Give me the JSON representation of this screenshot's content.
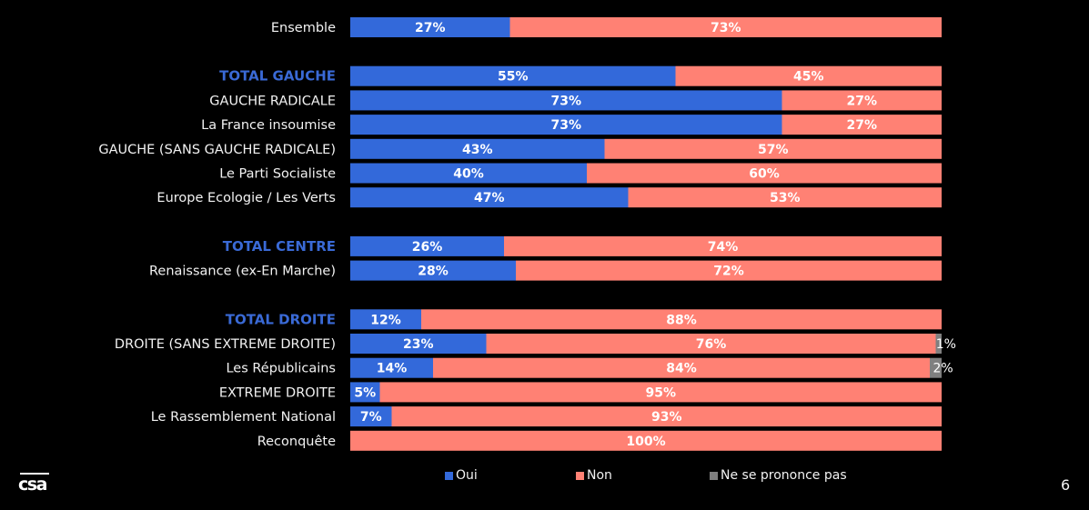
{
  "chart_data": {
    "type": "bar",
    "orientation": "horizontal-stacked-100",
    "title": "",
    "xlabel": "",
    "ylabel": "",
    "xlim": [
      0,
      100
    ],
    "grid": false,
    "legend_position": "bottom",
    "series": [
      {
        "name": "Oui",
        "color": "#3369da"
      },
      {
        "name": "Non",
        "color": "#ff8174"
      },
      {
        "name": "Ne se prononce pas",
        "color": "#7f7f7f"
      }
    ],
    "rows": [
      {
        "label": "Ensemble",
        "total": false,
        "group": 0,
        "values": [
          27,
          73,
          0
        ],
        "labels": [
          "27%",
          "73%",
          ""
        ]
      },
      {
        "label": "TOTAL GAUCHE",
        "total": true,
        "group": 1,
        "values": [
          55,
          45,
          0
        ],
        "labels": [
          "55%",
          "45%",
          ""
        ]
      },
      {
        "label": "GAUCHE RADICALE",
        "total": false,
        "group": 1,
        "values": [
          73,
          27,
          0
        ],
        "labels": [
          "73%",
          "27%",
          ""
        ]
      },
      {
        "label": "La France insoumise",
        "total": false,
        "group": 1,
        "values": [
          73,
          27,
          0
        ],
        "labels": [
          "73%",
          "27%",
          ""
        ]
      },
      {
        "label": "GAUCHE (SANS GAUCHE RADICALE)",
        "total": false,
        "group": 1,
        "values": [
          43,
          57,
          0
        ],
        "labels": [
          "43%",
          "57%",
          ""
        ]
      },
      {
        "label": "Le Parti Socialiste",
        "total": false,
        "group": 1,
        "values": [
          40,
          60,
          0
        ],
        "labels": [
          "40%",
          "60%",
          ""
        ]
      },
      {
        "label": "Europe Ecologie / Les Verts",
        "total": false,
        "group": 1,
        "values": [
          47,
          53,
          0
        ],
        "labels": [
          "47%",
          "53%",
          ""
        ]
      },
      {
        "label": "TOTAL CENTRE",
        "total": true,
        "group": 2,
        "values": [
          26,
          74,
          0
        ],
        "labels": [
          "26%",
          "74%",
          ""
        ]
      },
      {
        "label": "Renaissance (ex-En Marche)",
        "total": false,
        "group": 2,
        "values": [
          28,
          72,
          0
        ],
        "labels": [
          "28%",
          "72%",
          ""
        ]
      },
      {
        "label": "TOTAL DROITE",
        "total": true,
        "group": 3,
        "values": [
          12,
          88,
          0
        ],
        "labels": [
          "12%",
          "88%",
          ""
        ]
      },
      {
        "label": "DROITE (SANS EXTREME DROITE)",
        "total": false,
        "group": 3,
        "values": [
          23,
          76,
          1
        ],
        "labels": [
          "23%",
          "76%",
          "1%"
        ]
      },
      {
        "label": "Les Républicains",
        "total": false,
        "group": 3,
        "values": [
          14,
          84,
          2
        ],
        "labels": [
          "14%",
          "84%",
          "2%"
        ]
      },
      {
        "label": "EXTREME DROITE",
        "total": false,
        "group": 3,
        "values": [
          5,
          95,
          0
        ],
        "labels": [
          "5%",
          "95%",
          ""
        ]
      },
      {
        "label": "Le Rassemblement National",
        "total": false,
        "group": 3,
        "values": [
          7,
          93,
          0
        ],
        "labels": [
          "7%",
          "93%",
          ""
        ]
      },
      {
        "label": "Reconquête",
        "total": false,
        "group": 3,
        "values": [
          0,
          100,
          0
        ],
        "labels": [
          "",
          "100%",
          ""
        ]
      }
    ]
  },
  "legend": {
    "items": [
      {
        "label": "Oui",
        "color": "#3369da"
      },
      {
        "label": "Non",
        "color": "#ff8174"
      },
      {
        "label": "Ne se prononce pas",
        "color": "#7f7f7f"
      }
    ]
  },
  "logo": {
    "text": "csa"
  },
  "page_number": "6"
}
